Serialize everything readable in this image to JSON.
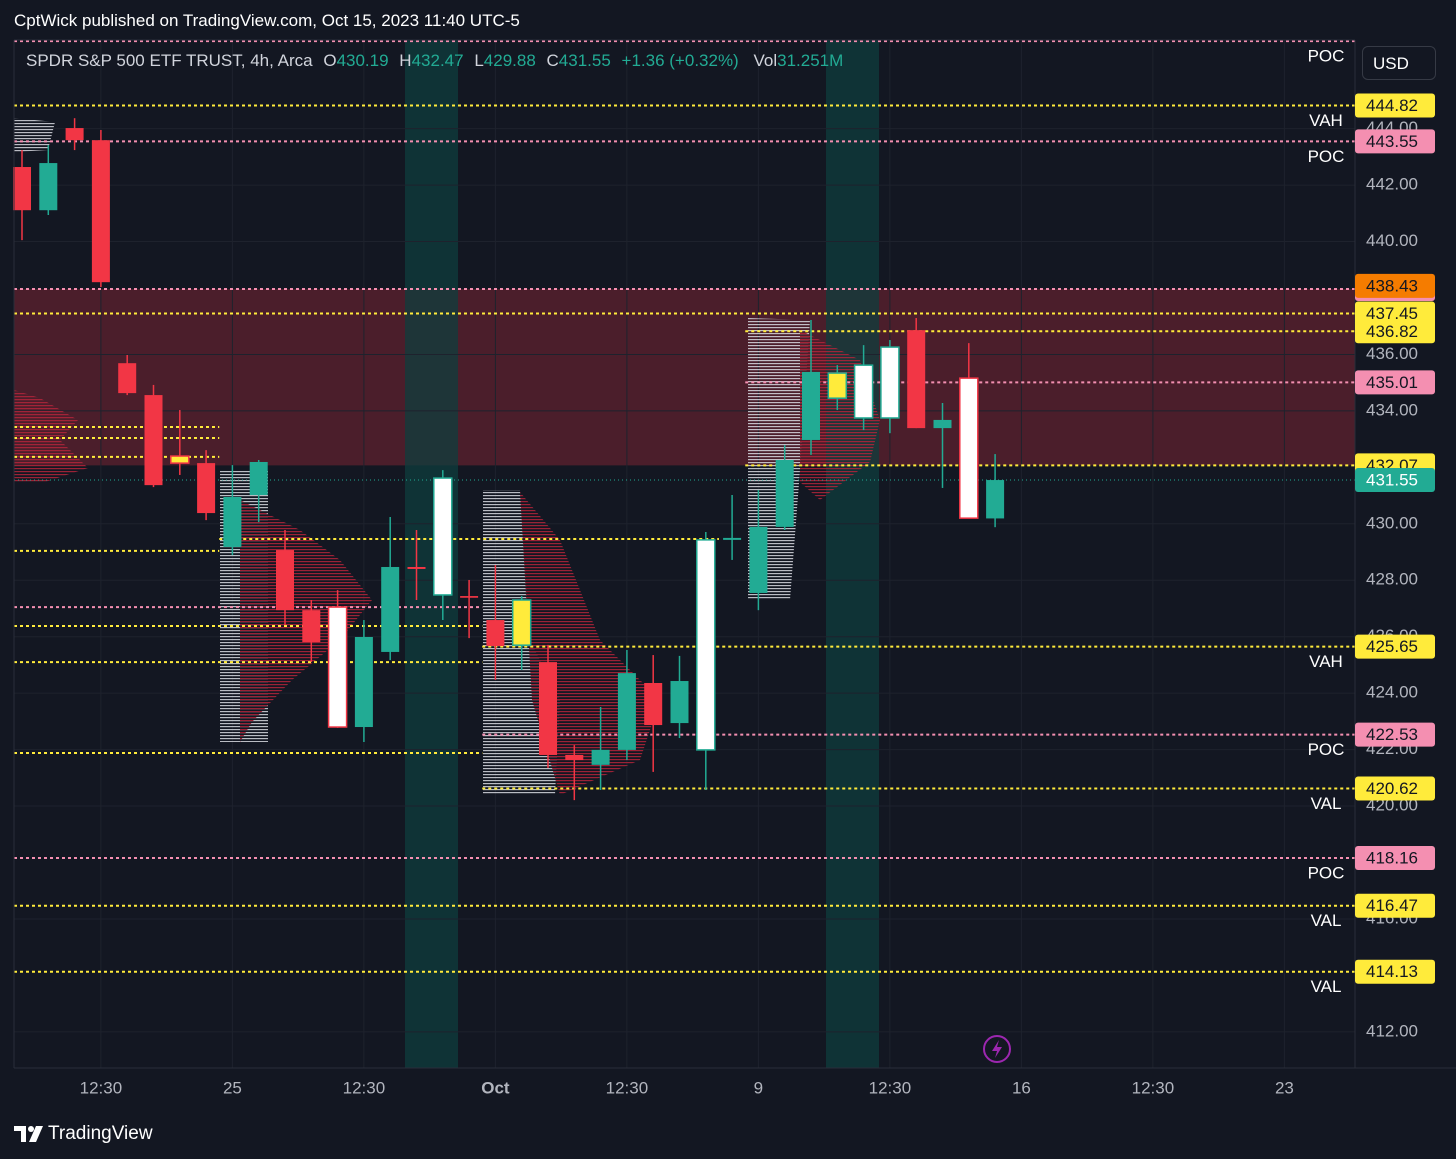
{
  "header": {
    "title": "CptWick published on TradingView.com, Oct 15, 2023 11:40 UTC-5"
  },
  "footer": {
    "brand": "TradingView"
  },
  "chart_data": {
    "type": "candlestick",
    "symbol": "SPDR S&P 500 ETF TRUST, 4h, Arca",
    "legend_fields": {
      "open": "O",
      "high": "H",
      "low": "L",
      "close": "C",
      "volume": "Vol"
    },
    "change": "+1.36 (+0.32%)",
    "volume": "31.251M",
    "currency": "USD",
    "categories": [
      null,
      null,
      null,
      "12:30",
      null,
      null,
      null,
      null,
      "25",
      null,
      null,
      null,
      null,
      "12:30",
      null,
      null,
      null,
      null,
      "Oct",
      null,
      null,
      null,
      null,
      "12:30",
      null,
      null,
      null,
      null,
      "9",
      null,
      null,
      null,
      null,
      "12:30",
      null,
      null,
      null,
      null,
      "16",
      null,
      null,
      null,
      null,
      "12:30",
      null,
      null,
      null,
      null,
      "23",
      null,
      null
    ],
    "open": [
      442.64,
      441.11,
      444.02,
      443.59,
      435.69,
      434.56,
      432.4,
      432.15,
      429.18,
      431.02,
      429.07,
      426.94,
      427.05,
      422.8,
      425.46,
      428.47,
      427.48,
      427.44,
      426.59,
      425.7,
      425.1,
      421.81,
      421.46,
      421.99,
      424.36,
      422.94,
      421.99,
      429.43,
      427.55,
      429.89,
      432.97,
      434.45,
      433.75,
      433.75,
      436.86,
      433.39,
      435.16,
      430.19,
      null,
      null,
      null,
      null,
      null,
      null,
      null,
      null,
      null,
      null,
      null,
      null,
      null
    ],
    "high": [
      443.24,
      443.42,
      444.37,
      443.95,
      435.98,
      434.92,
      434.03,
      432.61,
      432.08,
      432.26,
      429.78,
      427.3,
      427.65,
      426.59,
      430.24,
      429.78,
      431.9,
      428.01,
      428.54,
      427.44,
      425.71,
      422.16,
      423.51,
      425.53,
      425.35,
      425.32,
      429.71,
      431.02,
      431.2,
      432.79,
      437.22,
      435.62,
      436.33,
      436.51,
      437.29,
      434.28,
      436.4,
      432.47,
      null,
      null,
      null,
      null,
      null,
      null,
      null,
      null,
      null,
      null,
      null,
      null,
      null
    ],
    "low": [
      440.05,
      440.94,
      443.24,
      438.39,
      434.56,
      431.3,
      431.73,
      430.13,
      428.89,
      430.06,
      426.41,
      425.1,
      422.77,
      422.27,
      425.17,
      427.3,
      426.59,
      425.95,
      424.47,
      424.82,
      421.35,
      420.21,
      420.57,
      421.63,
      421.21,
      422.41,
      420.57,
      428.72,
      426.94,
      429.78,
      432.44,
      434.03,
      433.32,
      433.21,
      433.39,
      431.27,
      430.2,
      429.88,
      null,
      null,
      null,
      null,
      null,
      null,
      null,
      null,
      null,
      null,
      null,
      null,
      null
    ],
    "close": [
      441.11,
      442.78,
      443.59,
      438.56,
      434.63,
      431.37,
      432.15,
      430.38,
      430.95,
      432.19,
      426.94,
      425.81,
      422.8,
      425.99,
      428.47,
      428.4,
      431.62,
      427.38,
      425.67,
      427.3,
      421.81,
      421.63,
      421.99,
      424.71,
      422.87,
      424.43,
      429.43,
      429.5,
      429.89,
      432.26,
      435.38,
      435.34,
      435.62,
      436.26,
      433.39,
      433.68,
      430.2,
      431.55,
      null,
      null,
      null,
      null,
      null,
      null,
      null,
      null,
      null,
      null,
      null,
      null,
      null
    ],
    "colors": [
      null,
      null,
      null,
      null,
      null,
      null,
      "#ffeb3b",
      null,
      null,
      null,
      null,
      null,
      "#ffffff",
      null,
      null,
      null,
      "#ffffff",
      null,
      null,
      "#ffeb3b",
      null,
      null,
      null,
      null,
      null,
      null,
      "#ffffff",
      null,
      null,
      null,
      null,
      "#ffeb3b",
      "#ffffff",
      "#ffffff",
      null,
      null,
      "#ffffff",
      null,
      null,
      null,
      null,
      null,
      null,
      null,
      null,
      null,
      null,
      null,
      null,
      null,
      null
    ],
    "up_color": "#22ab94",
    "down_color": "#f23645",
    "ylim": [
      410.72,
      447.14
    ],
    "yticks": [
      {
        "value": 444,
        "label": "444.00"
      },
      {
        "value": 442,
        "label": "442.00"
      },
      {
        "value": 440,
        "label": "440.00"
      },
      {
        "value": 436,
        "label": "436.00"
      },
      {
        "value": 434,
        "label": "434.00"
      },
      {
        "value": 430,
        "label": "430.00"
      },
      {
        "value": 428,
        "label": "428.00"
      },
      {
        "value": 426,
        "label": "426.00"
      },
      {
        "value": 424,
        "label": "424.00"
      },
      {
        "value": 422,
        "label": "422.00"
      },
      {
        "value": 420,
        "label": "420.00"
      },
      {
        "value": 416,
        "label": "416.00"
      },
      {
        "value": 412,
        "label": "412.00"
      }
    ],
    "grid": true,
    "zone": {
      "from": 432.07,
      "to": 438.32,
      "color": "rgba(190,45,65,0.33)"
    },
    "levels": [
      {
        "value": 447.1,
        "color": "#f48fb1",
        "badge": false,
        "tag": "POC"
      },
      {
        "value": 444.82,
        "color": "#ffeb3b",
        "badge": true,
        "tag": "VAH"
      },
      {
        "value": 443.55,
        "color": "#f48fb1",
        "badge": true,
        "tag": "POC"
      },
      {
        "value": 438.32,
        "color": "#f48fb1",
        "badge": true
      },
      {
        "value": 437.45,
        "color": "#ffeb3b",
        "badge": true
      },
      {
        "value": 436.82,
        "color": "#ffeb3b",
        "badge": true,
        "start": 28
      },
      {
        "value": 435.01,
        "color": "#f48fb1",
        "badge": true,
        "start": 28
      },
      {
        "value": 432.07,
        "color": "#ffeb3b",
        "badge": true,
        "start": 28
      },
      {
        "value": 425.65,
        "color": "#ffeb3b",
        "badge": true,
        "start": 18,
        "tag": "VAH"
      },
      {
        "value": 422.53,
        "color": "#f48fb1",
        "badge": true,
        "start": 18,
        "tag": "POC"
      },
      {
        "value": 420.62,
        "color": "#ffeb3b",
        "badge": true,
        "start": 18,
        "tag": "VAL"
      },
      {
        "value": 418.16,
        "color": "#f48fb1",
        "badge": true,
        "tag": "POC"
      },
      {
        "value": 416.47,
        "color": "#ffeb3b",
        "badge": true,
        "tag": "VAL"
      },
      {
        "value": 414.13,
        "color": "#ffeb3b",
        "badge": true,
        "tag": "VAL"
      },
      {
        "value": 433.43,
        "color": "#ffeb3b",
        "badge": false,
        "end": 8
      },
      {
        "value": 433.04,
        "color": "#ffeb3b",
        "badge": false,
        "end": 8
      },
      {
        "value": 432.37,
        "color": "#ffeb3b",
        "badge": false,
        "end": 8
      },
      {
        "value": 429.46,
        "color": "#ffeb3b",
        "badge": false,
        "start": 8,
        "end": 27
      },
      {
        "value": 429.04,
        "color": "#ffeb3b",
        "badge": false,
        "end": 8
      },
      {
        "value": 427.05,
        "color": "#f48fb1",
        "badge": false,
        "end": 18
      },
      {
        "value": 426.38,
        "color": "#ffeb3b",
        "badge": false,
        "end": 18
      },
      {
        "value": 425.1,
        "color": "#ffeb3b",
        "badge": false,
        "end": 18
      },
      {
        "value": 421.88,
        "color": "#ffeb3b",
        "badge": false,
        "end": 18
      }
    ],
    "marker": {
      "value": 438.43,
      "color": "#f57c00"
    },
    "last_price_color": "#22ab94"
  }
}
